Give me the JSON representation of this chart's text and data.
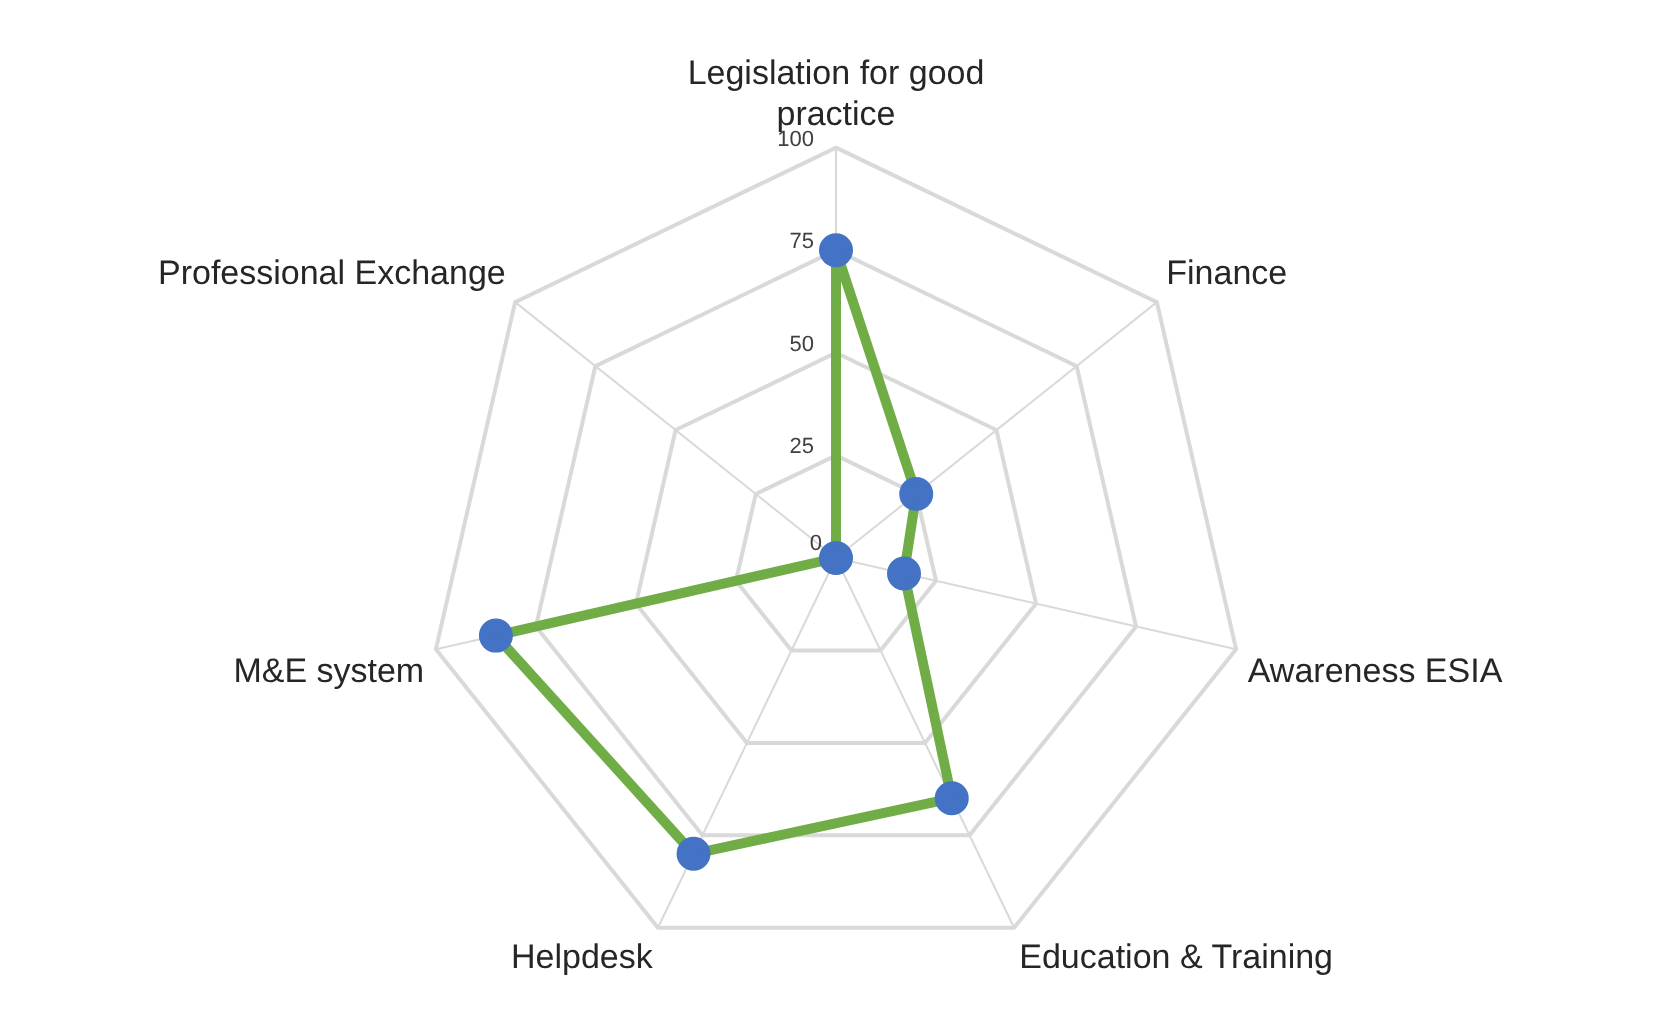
{
  "chart_data": {
    "type": "radar",
    "categories": [
      "Legislation for good practice",
      "Finance",
      "Awareness ESIA",
      "Education & Training",
      "Helpdesk",
      "M&E system",
      "Professional Exchange"
    ],
    "series": [
      {
        "color": "#70ad47",
        "values": [
          75,
          25,
          17,
          65,
          80,
          85,
          0
        ]
      }
    ],
    "ylim": [
      0,
      100
    ],
    "yticks": [
      0,
      25,
      50,
      75,
      100
    ],
    "grid": true,
    "legend": false,
    "marker": "circle",
    "line_style": "solid"
  }
}
